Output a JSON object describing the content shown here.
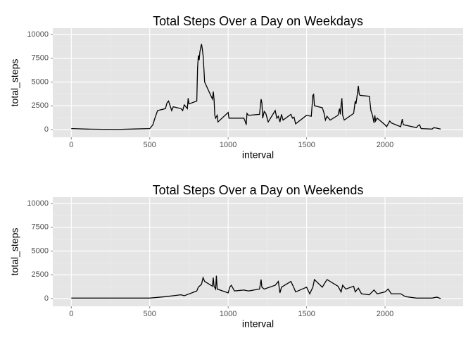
{
  "chart_data": [
    {
      "type": "line",
      "title": "Total Steps Over a Day on Weekdays",
      "x_label": "interval",
      "y_label": "total_steps",
      "color": "#000000",
      "x": [
        0,
        100,
        200,
        300,
        400,
        500,
        520,
        535,
        550,
        600,
        610,
        620,
        630,
        640,
        650,
        700,
        710,
        720,
        730,
        740,
        745,
        750,
        800,
        805,
        810,
        815,
        820,
        830,
        835,
        840,
        845,
        850,
        900,
        905,
        910,
        915,
        920,
        930,
        935,
        1000,
        1005,
        1100,
        1110,
        1115,
        1120,
        1130,
        1200,
        1210,
        1215,
        1220,
        1230,
        1240,
        1255,
        1300,
        1310,
        1320,
        1330,
        1340,
        1350,
        1400,
        1410,
        1420,
        1430,
        1500,
        1530,
        1540,
        1545,
        1550,
        1600,
        1610,
        1620,
        1630,
        1640,
        1650,
        1700,
        1710,
        1715,
        1720,
        1725,
        1730,
        1740,
        1800,
        1810,
        1815,
        1820,
        1830,
        1835,
        1840,
        1900,
        1910,
        1920,
        1930,
        1935,
        1940,
        1950,
        2000,
        2010,
        2020,
        2030,
        2040,
        2100,
        2110,
        2115,
        2120,
        2200,
        2210,
        2220,
        2230,
        2300,
        2310,
        2330,
        2355
      ],
      "values": [
        100,
        50,
        30,
        20,
        60,
        100,
        500,
        1300,
        2000,
        2200,
        2800,
        3000,
        2500,
        2000,
        2400,
        2200,
        2000,
        2600,
        2400,
        2200,
        3300,
        2700,
        3000,
        6500,
        7800,
        7300,
        8200,
        9000,
        8500,
        7800,
        6500,
        5000,
        3200,
        4000,
        3200,
        1500,
        1200,
        1500,
        800,
        1800,
        1200,
        1200,
        800,
        500,
        1700,
        1500,
        1600,
        3200,
        2800,
        1200,
        1900,
        1700,
        800,
        2000,
        1200,
        1400,
        800,
        1600,
        1000,
        1600,
        1200,
        1300,
        600,
        1500,
        1400,
        3600,
        3700,
        2500,
        2300,
        1800,
        1000,
        1400,
        1200,
        1000,
        1500,
        2200,
        1600,
        2600,
        3300,
        1500,
        1000,
        1700,
        3000,
        2700,
        3300,
        4600,
        3800,
        3600,
        3500,
        2000,
        1500,
        700,
        1500,
        900,
        1200,
        500,
        300,
        600,
        900,
        700,
        300,
        1100,
        600,
        500,
        200,
        400,
        500,
        100,
        50,
        200,
        150,
        50
      ],
      "xlim": [
        -118,
        2498
      ],
      "xticks": [
        0,
        500,
        1000,
        1500,
        2000
      ],
      "ylim": [
        -815,
        10667
      ],
      "yticks": [
        0,
        2500,
        5000,
        7500,
        10000
      ],
      "grid": true
    },
    {
      "type": "line",
      "title": "Total Steps Over a Day on Weekends",
      "x_label": "interval",
      "y_label": "total_steps",
      "color": "#000000",
      "x": [
        0,
        500,
        600,
        700,
        720,
        800,
        810,
        830,
        840,
        850,
        900,
        905,
        910,
        920,
        925,
        930,
        1000,
        1010,
        1020,
        1040,
        1100,
        1130,
        1200,
        1210,
        1215,
        1230,
        1300,
        1320,
        1330,
        1340,
        1400,
        1420,
        1430,
        1500,
        1520,
        1540,
        1550,
        1600,
        1630,
        1700,
        1720,
        1730,
        1750,
        1800,
        1810,
        1830,
        1850,
        1900,
        1930,
        1950,
        2000,
        2020,
        2040,
        2100,
        2130,
        2200,
        2300,
        2330,
        2355
      ],
      "values": [
        50,
        50,
        200,
        400,
        300,
        800,
        1200,
        1500,
        2200,
        1800,
        1300,
        2200,
        1300,
        1000,
        2400,
        1000,
        600,
        1200,
        1400,
        800,
        900,
        800,
        1000,
        2000,
        1200,
        1000,
        1400,
        1800,
        600,
        1200,
        1800,
        1100,
        700,
        1200,
        500,
        1200,
        2000,
        1200,
        2000,
        1300,
        700,
        1400,
        1000,
        1300,
        700,
        1100,
        500,
        400,
        900,
        500,
        700,
        1000,
        500,
        500,
        200,
        50,
        50,
        150,
        0
      ],
      "xlim": [
        -118,
        2498
      ],
      "xticks": [
        0,
        500,
        1000,
        1500,
        2000
      ],
      "ylim": [
        -815,
        10667
      ],
      "yticks": [
        0,
        2500,
        5000,
        7500,
        10000
      ],
      "grid": true
    }
  ]
}
